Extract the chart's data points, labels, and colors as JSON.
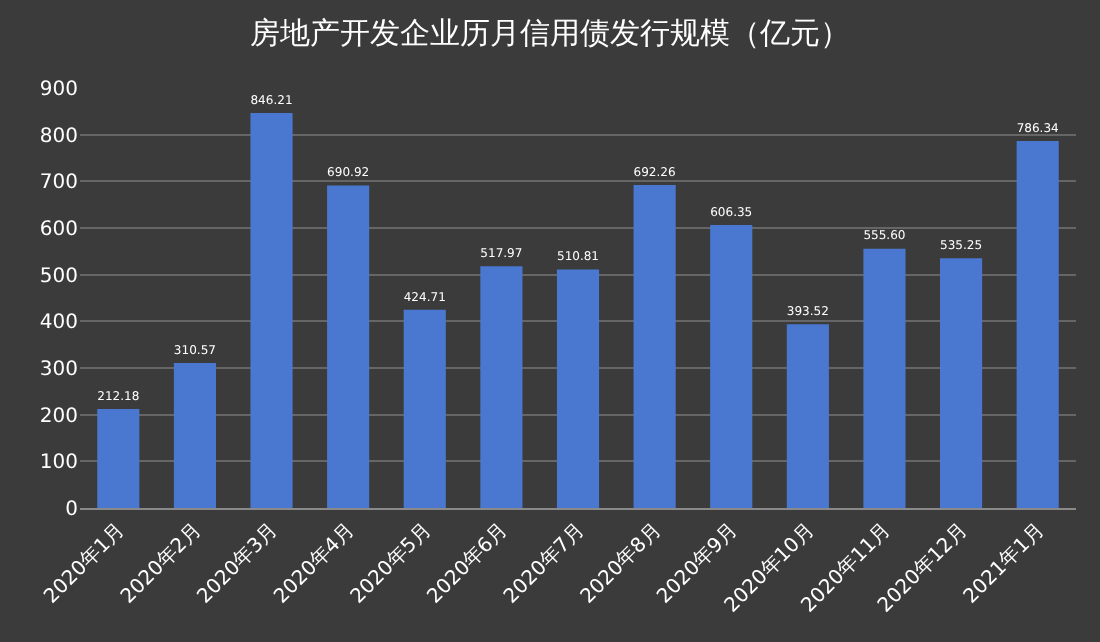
{
  "chart_data": {
    "type": "bar",
    "title": "房地产开发企业历月信用债发行规模（亿元）",
    "categories": [
      "2020年1月",
      "2020年2月",
      "2020年3月",
      "2020年4月",
      "2020年5月",
      "2020年6月",
      "2020年7月",
      "2020年8月",
      "2020年9月",
      "2020年10月",
      "2020年11月",
      "2020年12月",
      "2021年1月"
    ],
    "values": [
      212.18,
      310.57,
      846.21,
      690.92,
      424.71,
      517.97,
      510.81,
      692.26,
      606.35,
      393.52,
      555.6,
      535.25,
      786.34
    ],
    "value_labels": [
      "212.18",
      "310.57",
      "846.21",
      "690.92",
      "424.71",
      "517.97",
      "510.81",
      "692.26",
      "606.35",
      "393.52",
      "555.60",
      "535.25",
      "786.34"
    ],
    "color": "#4a78d0",
    "ylim": [
      0,
      900
    ],
    "yticks": [
      0,
      100,
      200,
      300,
      400,
      500,
      600,
      700,
      800,
      900
    ],
    "grid": "y"
  }
}
